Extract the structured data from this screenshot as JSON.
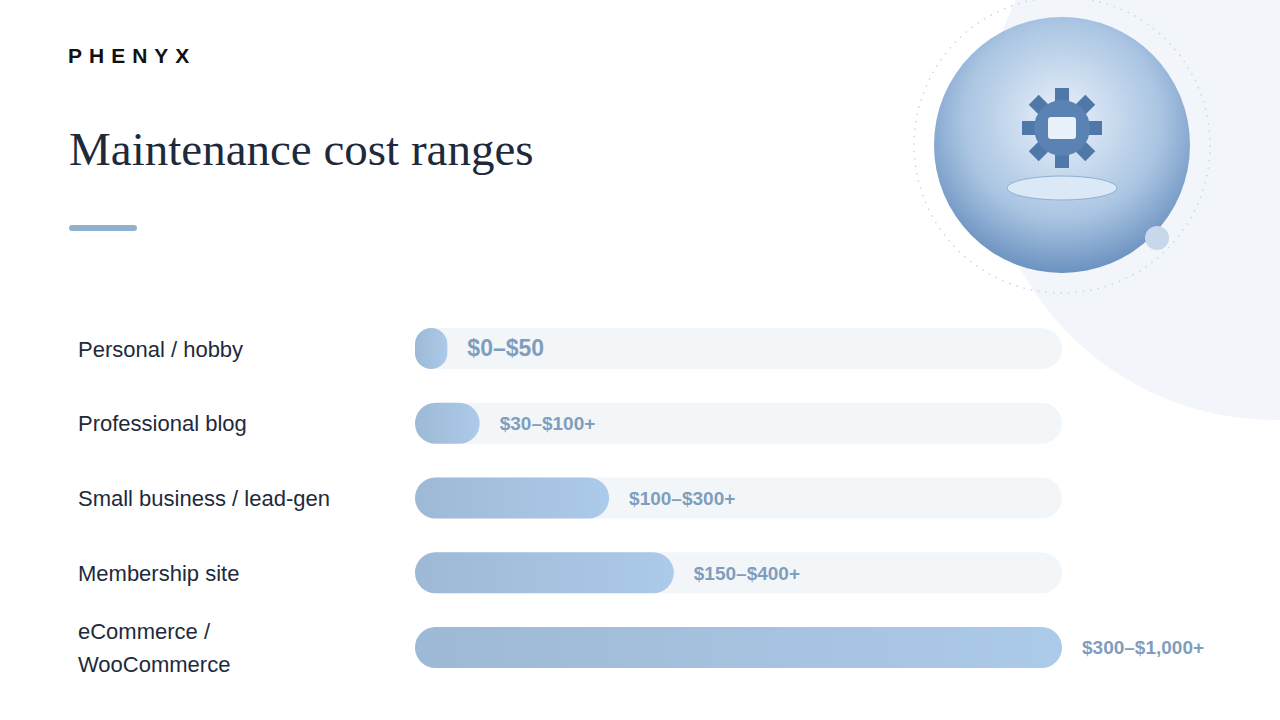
{
  "chart_data": {
    "type": "bar",
    "orientation": "horizontal",
    "title": "Maintenance cost ranges",
    "annotations": [
      "PHENYX"
    ],
    "categories": [
      "Personal / hobby",
      "Professional blog",
      "Small business / lead-gen",
      "Membership site",
      "eCommerce / WooCommerce"
    ],
    "values": [
      50,
      100,
      300,
      400,
      1000
    ],
    "value_labels": [
      "$0–$50",
      "$30–$100+",
      "$100–$300+",
      "$150–$400+",
      "$300–$1,000+"
    ],
    "color": "#9db9d5",
    "xlim": [
      0,
      1000
    ],
    "data_labels": true,
    "tick_labels": false,
    "grid": false
  }
}
